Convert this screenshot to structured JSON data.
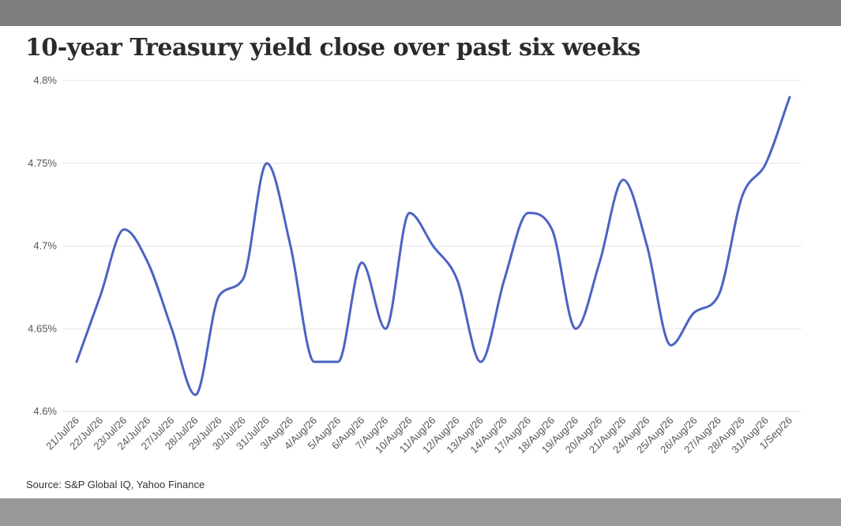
{
  "title": "10-year Treasury yield close over past six weeks",
  "source": "Source: S&P Global IQ, Yahoo Finance",
  "colors": {
    "line": "#4a63c4",
    "grid": "#e6e6e6",
    "axis_text": "#555555",
    "background": "#ffffff"
  },
  "chart_data": {
    "type": "line",
    "title": "10-year Treasury yield close over past six weeks",
    "xlabel": "",
    "ylabel": "",
    "categories": [
      "21/Jul/26",
      "22/Jul/26",
      "23/Jul/26",
      "24/Jul/26",
      "27/Jul/26",
      "28/Jul/26",
      "29/Jul/26",
      "30/Jul/26",
      "31/Jul/26",
      "3/Aug/26",
      "4/Aug/26",
      "5/Aug/26",
      "6/Aug/26",
      "7/Aug/26",
      "10/Aug/26",
      "11/Aug/26",
      "12/Aug/26",
      "13/Aug/26",
      "14/Aug/26",
      "17/Aug/26",
      "18/Aug/26",
      "19/Aug/26",
      "20/Aug/26",
      "21/Aug/26",
      "24/Aug/26",
      "25/Aug/26",
      "26/Aug/26",
      "27/Aug/26",
      "28/Aug/26",
      "31/Aug/26",
      "1/Sep/26"
    ],
    "values": [
      4.63,
      4.67,
      4.71,
      4.69,
      4.65,
      4.61,
      4.67,
      4.68,
      4.75,
      4.7,
      4.63,
      4.63,
      4.69,
      4.65,
      4.72,
      4.7,
      4.68,
      4.63,
      4.68,
      4.72,
      4.71,
      4.65,
      4.69,
      4.74,
      4.7,
      4.64,
      4.66,
      4.67,
      4.73,
      4.75,
      4.79
    ],
    "ylim": [
      4.6,
      4.8
    ],
    "yticks": [
      4.6,
      4.65,
      4.7,
      4.75,
      4.8
    ],
    "ytick_labels": [
      "4.6%",
      "4.65%",
      "4.7%",
      "4.75%",
      "4.8%"
    ],
    "grid": "horizontal",
    "legend": "none",
    "smooth": true
  }
}
